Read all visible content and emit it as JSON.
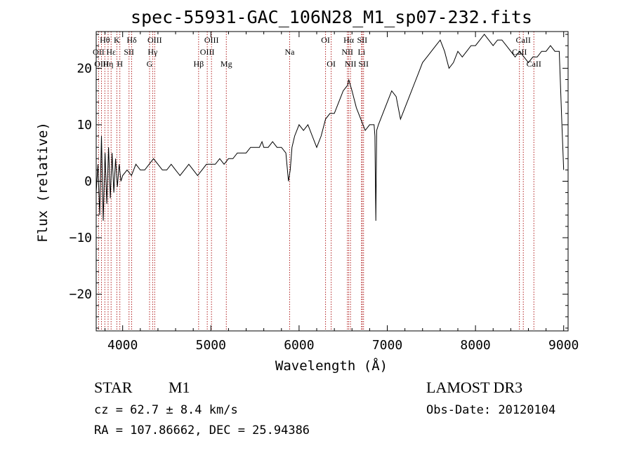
{
  "chart_data": {
    "type": "line",
    "title": "spec-55931-GAC_106N28_M1_sp07-232.fits",
    "xlabel": "Wavelength (Å)",
    "ylabel": "Flux (relative)",
    "xlim": [
      3700,
      9050
    ],
    "ylim": [
      -26.5,
      26.5
    ],
    "xticks": [
      4000,
      5000,
      6000,
      7000,
      8000,
      9000
    ],
    "yticks": [
      -20,
      -10,
      0,
      10,
      20
    ],
    "series": [
      {
        "name": "flux",
        "x": [
          3700,
          3720,
          3740,
          3760,
          3780,
          3800,
          3820,
          3840,
          3860,
          3880,
          3900,
          3920,
          3940,
          3960,
          3980,
          4000,
          4050,
          4100,
          4150,
          4200,
          4250,
          4300,
          4350,
          4400,
          4450,
          4500,
          4550,
          4600,
          4650,
          4700,
          4750,
          4800,
          4850,
          4900,
          4950,
          5000,
          5050,
          5100,
          5150,
          5200,
          5250,
          5300,
          5350,
          5400,
          5450,
          5500,
          5550,
          5580,
          5600,
          5620,
          5650,
          5700,
          5750,
          5800,
          5850,
          5880,
          5900,
          5920,
          5950,
          6000,
          6050,
          6100,
          6150,
          6200,
          6250,
          6300,
          6350,
          6400,
          6450,
          6500,
          6550,
          6563,
          6600,
          6650,
          6700,
          6750,
          6800,
          6850,
          6860,
          6870,
          6880,
          6900,
          6950,
          7000,
          7050,
          7100,
          7150,
          7200,
          7250,
          7300,
          7350,
          7400,
          7450,
          7500,
          7550,
          7600,
          7650,
          7700,
          7750,
          7800,
          7850,
          7900,
          7950,
          8000,
          8050,
          8100,
          8150,
          8200,
          8250,
          8300,
          8350,
          8400,
          8450,
          8500,
          8550,
          8600,
          8650,
          8700,
          8750,
          8800,
          8850,
          8900,
          8950,
          8980,
          9000
        ],
        "y": [
          -2,
          3,
          -6,
          8,
          -7,
          5,
          -4,
          6,
          -3,
          5,
          -2,
          4,
          -1,
          3,
          0,
          1,
          2,
          1,
          3,
          2,
          2,
          3,
          4,
          3,
          2,
          2,
          3,
          2,
          1,
          2,
          3,
          2,
          1,
          2,
          3,
          3,
          3,
          4,
          3,
          4,
          4,
          5,
          5,
          5,
          6,
          6,
          6,
          7,
          6,
          6,
          6,
          7,
          6,
          6,
          5,
          0,
          2,
          6,
          8,
          10,
          9,
          10,
          8,
          6,
          8,
          11,
          12,
          12,
          14,
          16,
          17,
          18,
          16,
          13,
          11,
          9,
          10,
          10,
          8,
          -7,
          9,
          10,
          12,
          14,
          16,
          15,
          11,
          13,
          15,
          17,
          19,
          21,
          22,
          23,
          24,
          25,
          23,
          20,
          21,
          23,
          22,
          23,
          24,
          24,
          25,
          26,
          25,
          24,
          25,
          25,
          24,
          23,
          22,
          23,
          22,
          21,
          22,
          22,
          23,
          23,
          24,
          23,
          23,
          10,
          2
        ]
      }
    ],
    "line_markers": [
      {
        "label": "Hθ",
        "wavelength": 3798,
        "row": 1
      },
      {
        "label": "OII",
        "wavelength": 3727,
        "row": 2
      },
      {
        "label": "OIII",
        "wavelength": 3760,
        "row": 3
      },
      {
        "label": "Hε",
        "wavelength": 3869,
        "row": 2
      },
      {
        "label": "Hη",
        "wavelength": 3835,
        "row": 3
      },
      {
        "label": "K",
        "wavelength": 3934,
        "row": 1
      },
      {
        "label": "H",
        "wavelength": 3968,
        "row": 3
      },
      {
        "label": "Hδ",
        "wavelength": 4102,
        "row": 1
      },
      {
        "label": "SII",
        "wavelength": 4072,
        "row": 2
      },
      {
        "label": "OIII",
        "wavelength": 4363,
        "row": 1
      },
      {
        "label": "Hγ",
        "wavelength": 4340,
        "row": 2
      },
      {
        "label": "G",
        "wavelength": 4305,
        "row": 3
      },
      {
        "label": "Hβ",
        "wavelength": 4861,
        "row": 3
      },
      {
        "label": "OIII",
        "wavelength": 5007,
        "row": 1
      },
      {
        "label": "OIII",
        "wavelength": 4959,
        "row": 2
      },
      {
        "label": "Mg",
        "wavelength": 5175,
        "row": 3
      },
      {
        "label": "Na",
        "wavelength": 5893,
        "row": 2
      },
      {
        "label": "OI",
        "wavelength": 6300,
        "row": 1
      },
      {
        "label": "OI",
        "wavelength": 6364,
        "row": 3
      },
      {
        "label": "Hα",
        "wavelength": 6563,
        "row": 1
      },
      {
        "label": "SII",
        "wavelength": 6716,
        "row": 1
      },
      {
        "label": "NII",
        "wavelength": 6548,
        "row": 2
      },
      {
        "label": "Li",
        "wavelength": 6708,
        "row": 2
      },
      {
        "label": "NII",
        "wavelength": 6583,
        "row": 3
      },
      {
        "label": "SII",
        "wavelength": 6731,
        "row": 3
      },
      {
        "label": "CaII",
        "wavelength": 8542,
        "row": 1
      },
      {
        "label": "CaII",
        "wavelength": 8498,
        "row": 2
      },
      {
        "label": "CaII",
        "wavelength": 8662,
        "row": 3
      }
    ]
  },
  "info": {
    "object_class": "STAR",
    "subclass": "M1",
    "survey": "LAMOST DR3",
    "cz": "cz = 62.7 ± 8.4 km/s",
    "obs_date": "Obs-Date: 20120104",
    "coords": "RA = 107.86662, DEC =  25.94386"
  },
  "colors": {
    "spectrum": "#000000",
    "marker": "#b22222"
  }
}
